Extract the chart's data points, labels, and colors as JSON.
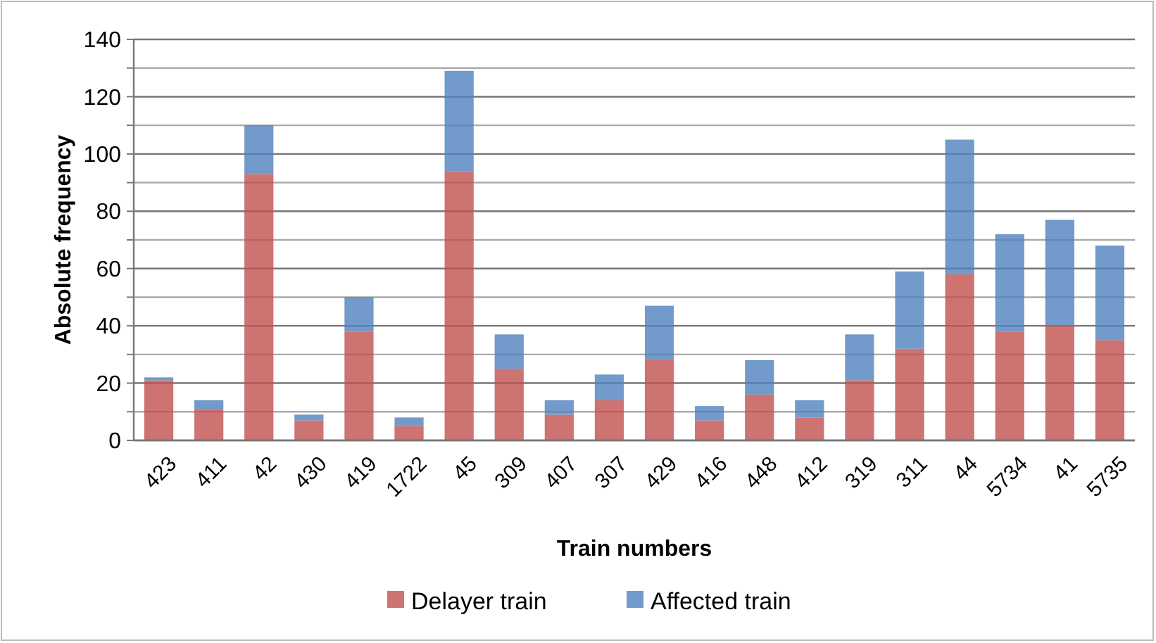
{
  "chart_data": {
    "type": "bar",
    "stacked": true,
    "xlabel": "Train numbers",
    "ylabel": "Absolute frequency",
    "categories": [
      "423",
      "411",
      "42",
      "430",
      "419",
      "1722",
      "45",
      "309",
      "407",
      "307",
      "429",
      "416",
      "448",
      "412",
      "319",
      "311",
      "44",
      "5734",
      "41",
      "5735"
    ],
    "series": [
      {
        "name": "Delayer train",
        "color": "#c0504d",
        "values": [
          21,
          11,
          93,
          7,
          38,
          5,
          94,
          25,
          9,
          14,
          28,
          7,
          16,
          8,
          21,
          32,
          58,
          38,
          40,
          35
        ]
      },
      {
        "name": "Affected train",
        "color": "#4f81bd",
        "values": [
          1,
          3,
          17,
          2,
          12,
          3,
          35,
          12,
          5,
          9,
          19,
          5,
          12,
          6,
          16,
          27,
          47,
          34,
          37,
          33
        ]
      }
    ],
    "ylim": [
      0,
      140
    ],
    "yticks": [
      0,
      {
        "value": 10,
        "label": null
      },
      20,
      {
        "value": 30,
        "label": null
      },
      40,
      {
        "value": 50,
        "label": null
      },
      60,
      {
        "value": 70,
        "label": null
      },
      80,
      {
        "value": 90,
        "label": null
      },
      100,
      {
        "value": 110,
        "label": null
      },
      120,
      {
        "value": 130,
        "label": null
      },
      140
    ],
    "grid": "y",
    "legend": "bottom"
  }
}
